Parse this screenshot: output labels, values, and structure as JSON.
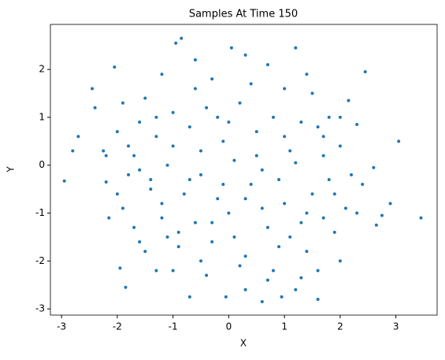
{
  "chart_data": {
    "type": "scatter",
    "title": "Samples At Time 150",
    "x_label": "X",
    "y_label": "Y",
    "color": "#1f77b4",
    "xlim": [
      -3.2,
      3.74
    ],
    "ylim": [
      -3.13,
      2.94
    ],
    "xticks": [
      -3,
      -2,
      -1,
      0,
      1,
      2,
      3
    ],
    "yticks": [
      -3,
      -2,
      -1,
      0,
      1,
      2
    ],
    "x": [
      -2.95,
      -2.8,
      -2.7,
      -2.45,
      -2.4,
      -2.05,
      -1.95,
      -1.85,
      -0.85,
      -0.95,
      0.05,
      1.2,
      2.45,
      3.05,
      3.45,
      2.65,
      2.75,
      2.9,
      2.0,
      1.6,
      0.6,
      -0.7,
      0.95,
      -0.05,
      1.3,
      1.6,
      -1.3,
      2.6,
      2.3,
      2.15,
      -2.25,
      -2.2,
      -2.2,
      -2.15,
      -1.9,
      -1.5,
      -1.2,
      -0.6,
      -0.3,
      0.3,
      0.7,
      1.0,
      1.5,
      1.8,
      1.7,
      -1.6,
      -1.0,
      -0.4,
      0.2,
      0.8,
      1.3,
      2.0,
      -1.8,
      -1.3,
      -0.7,
      -0.1,
      0.5,
      1.1,
      1.7,
      2.2,
      -1.6,
      -1.1,
      -0.5,
      0.1,
      0.6,
      1.2,
      1.8,
      2.4,
      -2.0,
      -1.4,
      -0.8,
      -0.2,
      0.4,
      1.0,
      1.5,
      2.1,
      -1.7,
      -1.2,
      -0.6,
      0.0,
      0.7,
      1.3,
      1.9,
      -1.5,
      -0.9,
      -0.3,
      0.3,
      0.9,
      1.4,
      -1.0,
      -0.4,
      0.2,
      0.8,
      1.2,
      -0.2,
      -1.9,
      -1.3,
      -0.6,
      0.4,
      1.4,
      -2.0,
      -1.7,
      -1.4,
      -1.0,
      -0.5,
      0.0,
      0.5,
      1.0,
      1.6,
      2.0,
      -1.8,
      -1.2,
      -0.7,
      -0.1,
      0.3,
      0.9,
      1.4,
      1.9,
      2.3,
      -0.9,
      -0.3,
      0.6,
      1.1,
      1.7,
      -1.6,
      -0.5,
      0.1,
      0.7,
      -1.1,
      0.3
    ],
    "y": [
      -0.33,
      0.3,
      0.6,
      1.6,
      1.2,
      2.05,
      -2.15,
      -2.55,
      2.65,
      2.55,
      2.45,
      2.45,
      1.95,
      0.5,
      -1.1,
      -1.25,
      -1.05,
      -0.8,
      -2.0,
      -2.8,
      -2.85,
      -2.75,
      -2.75,
      -2.75,
      -2.35,
      -2.2,
      -2.2,
      -0.05,
      0.85,
      1.35,
      0.3,
      0.2,
      -0.35,
      -1.1,
      -0.9,
      1.4,
      1.9,
      2.2,
      1.8,
      2.3,
      2.1,
      1.6,
      1.5,
      1.0,
      0.6,
      0.9,
      1.1,
      1.2,
      1.3,
      1.0,
      0.9,
      0.4,
      0.4,
      0.6,
      0.8,
      0.5,
      0.7,
      0.3,
      0.2,
      -0.2,
      -0.1,
      0.0,
      -0.2,
      0.1,
      -0.1,
      0.05,
      -0.3,
      -0.4,
      -0.6,
      -0.5,
      -0.6,
      -0.7,
      -0.4,
      -0.8,
      -0.6,
      -0.9,
      -1.3,
      -1.1,
      -1.2,
      -1.0,
      -1.3,
      -1.2,
      -1.4,
      -1.8,
      -1.7,
      -1.6,
      -1.9,
      -1.7,
      -1.8,
      -2.2,
      -2.3,
      -2.1,
      -2.2,
      -2.6,
      1.0,
      1.3,
      1.0,
      1.6,
      1.7,
      1.9,
      0.7,
      0.2,
      -0.3,
      0.4,
      0.3,
      0.9,
      0.2,
      0.6,
      0.8,
      1.0,
      -0.2,
      -0.8,
      -0.3,
      -0.4,
      -0.7,
      -0.3,
      -1.0,
      -0.6,
      -1.0,
      -1.4,
      -1.2,
      -0.9,
      -1.5,
      -1.1,
      -1.6,
      -2.0,
      -1.5,
      -2.4,
      -1.5,
      -2.6
    ]
  }
}
